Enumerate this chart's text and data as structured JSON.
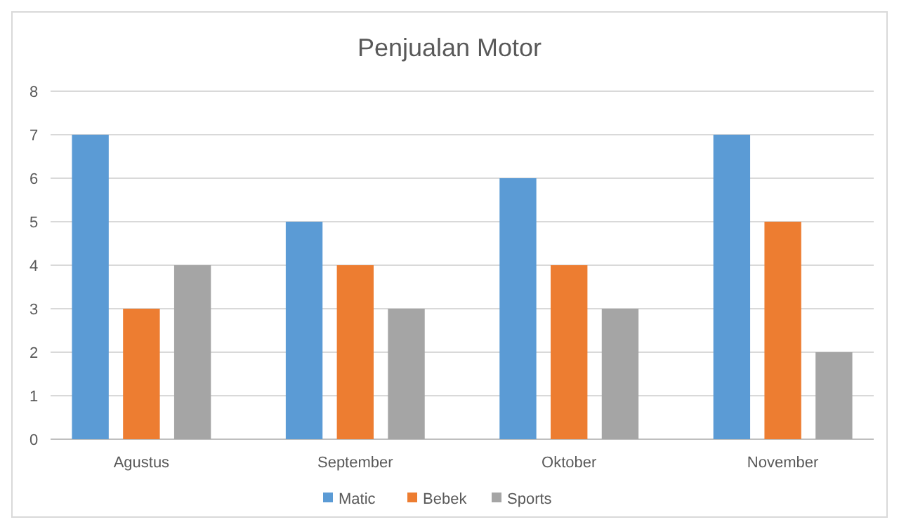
{
  "chart_data": {
    "type": "bar",
    "title": "Penjualan Motor",
    "categories": [
      "Agustus",
      "September",
      "Oktober",
      "November"
    ],
    "series": [
      {
        "name": "Matic",
        "color": "#5b9bd5",
        "values": [
          7,
          5,
          6,
          7
        ]
      },
      {
        "name": "Bebek",
        "color": "#ed7d31",
        "values": [
          3,
          4,
          4,
          5
        ]
      },
      {
        "name": "Sports",
        "color": "#a5a5a5",
        "values": [
          4,
          3,
          3,
          2
        ]
      }
    ],
    "ylim": [
      0,
      8
    ],
    "yticks": [
      0,
      1,
      2,
      3,
      4,
      5,
      6,
      7,
      8
    ],
    "grid": "y",
    "legend": "bottom"
  }
}
